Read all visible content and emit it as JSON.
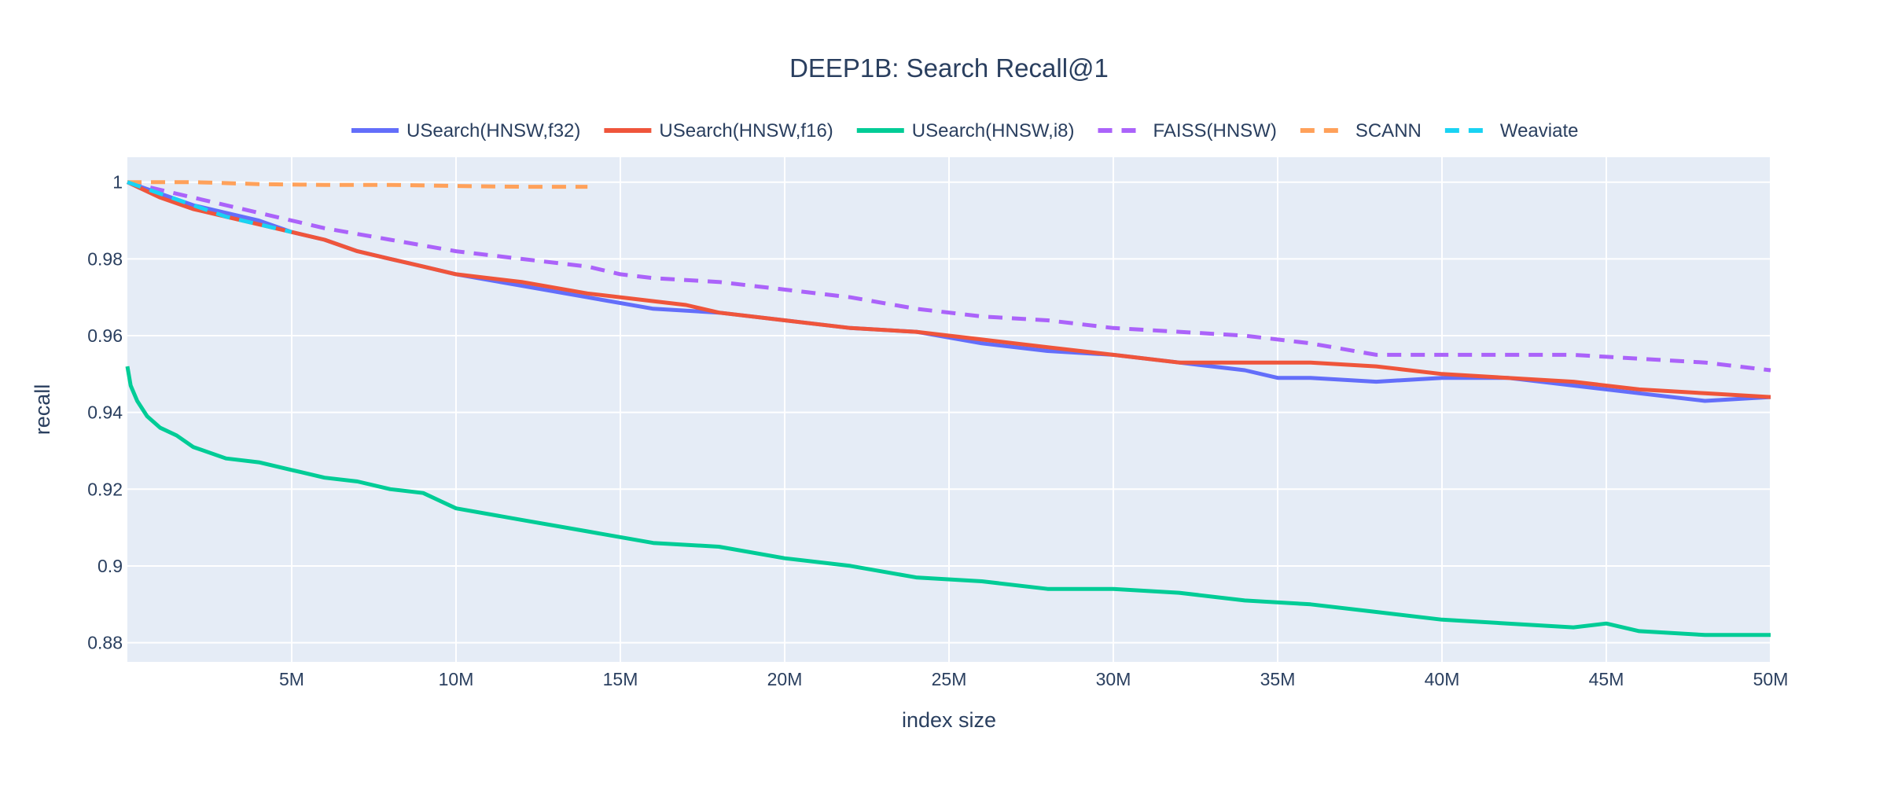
{
  "chart_data": {
    "type": "line",
    "title": "DEEP1B: Search Recall@1",
    "xlabel": "index size",
    "ylabel": "recall",
    "xlim": [
      0,
      50000000
    ],
    "ylim": [
      0.875,
      1.0065
    ],
    "x_ticks": [
      {
        "value": 5000000,
        "label": "5M"
      },
      {
        "value": 10000000,
        "label": "10M"
      },
      {
        "value": 15000000,
        "label": "15M"
      },
      {
        "value": 20000000,
        "label": "20M"
      },
      {
        "value": 25000000,
        "label": "25M"
      },
      {
        "value": 30000000,
        "label": "30M"
      },
      {
        "value": 35000000,
        "label": "35M"
      },
      {
        "value": 40000000,
        "label": "40M"
      },
      {
        "value": 45000000,
        "label": "45M"
      },
      {
        "value": 50000000,
        "label": "50M"
      }
    ],
    "y_ticks": [
      {
        "value": 0.88,
        "label": "0.88"
      },
      {
        "value": 0.9,
        "label": "0.9"
      },
      {
        "value": 0.92,
        "label": "0.92"
      },
      {
        "value": 0.94,
        "label": "0.94"
      },
      {
        "value": 0.96,
        "label": "0.96"
      },
      {
        "value": 0.98,
        "label": "0.98"
      },
      {
        "value": 1.0,
        "label": "1"
      }
    ],
    "grid": true,
    "legend_position": "top-center-horizontal",
    "colors": {
      "plot_bg": "#e5ecf6",
      "grid": "#ffffff",
      "text": "#2a3f5f"
    },
    "series": [
      {
        "name": "USearch(HNSW,f32)",
        "color": "#636efa",
        "dash": "solid",
        "x": [
          0,
          1000000,
          2000000,
          3000000,
          4000000,
          5000000,
          6000000,
          7000000,
          8000000,
          9000000,
          10000000,
          12000000,
          14000000,
          16000000,
          18000000,
          20000000,
          22000000,
          24000000,
          26000000,
          28000000,
          30000000,
          32000000,
          34000000,
          35000000,
          36000000,
          38000000,
          40000000,
          42000000,
          44000000,
          46000000,
          48000000,
          50000000
        ],
        "y": [
          1.0,
          0.997,
          0.994,
          0.992,
          0.99,
          0.987,
          0.985,
          0.982,
          0.98,
          0.978,
          0.976,
          0.973,
          0.97,
          0.967,
          0.966,
          0.964,
          0.962,
          0.961,
          0.958,
          0.956,
          0.955,
          0.953,
          0.951,
          0.949,
          0.949,
          0.948,
          0.949,
          0.949,
          0.947,
          0.945,
          0.943,
          0.944
        ]
      },
      {
        "name": "USearch(HNSW,f16)",
        "color": "#ef553b",
        "dash": "solid",
        "x": [
          0,
          1000000,
          2000000,
          3000000,
          4000000,
          5000000,
          6000000,
          7000000,
          8000000,
          9000000,
          10000000,
          12000000,
          14000000,
          16000000,
          17000000,
          18000000,
          20000000,
          22000000,
          24000000,
          26000000,
          28000000,
          30000000,
          32000000,
          34000000,
          36000000,
          38000000,
          40000000,
          42000000,
          44000000,
          46000000,
          48000000,
          50000000
        ],
        "y": [
          1.0,
          0.996,
          0.993,
          0.991,
          0.989,
          0.987,
          0.985,
          0.982,
          0.98,
          0.978,
          0.976,
          0.974,
          0.971,
          0.969,
          0.968,
          0.966,
          0.964,
          0.962,
          0.961,
          0.959,
          0.957,
          0.955,
          0.953,
          0.953,
          0.953,
          0.952,
          0.95,
          0.949,
          0.948,
          0.946,
          0.945,
          0.944
        ]
      },
      {
        "name": "USearch(HNSW,i8)",
        "color": "#00cc96",
        "dash": "solid",
        "x": [
          0,
          100000,
          300000,
          600000,
          1000000,
          1500000,
          2000000,
          3000000,
          4000000,
          5000000,
          6000000,
          7000000,
          8000000,
          9000000,
          10000000,
          12000000,
          14000000,
          16000000,
          18000000,
          20000000,
          22000000,
          24000000,
          26000000,
          28000000,
          30000000,
          32000000,
          34000000,
          36000000,
          38000000,
          40000000,
          42000000,
          44000000,
          45000000,
          46000000,
          48000000,
          50000000
        ],
        "y": [
          0.952,
          0.947,
          0.943,
          0.939,
          0.936,
          0.934,
          0.931,
          0.928,
          0.927,
          0.925,
          0.923,
          0.922,
          0.92,
          0.919,
          0.915,
          0.912,
          0.909,
          0.906,
          0.905,
          0.902,
          0.9,
          0.897,
          0.896,
          0.894,
          0.894,
          0.893,
          0.891,
          0.89,
          0.888,
          0.886,
          0.885,
          0.884,
          0.885,
          0.883,
          0.882,
          0.882
        ]
      },
      {
        "name": "FAISS(HNSW)",
        "color": "#ab63fa",
        "dash": "dash",
        "x": [
          0,
          2000000,
          4000000,
          6000000,
          8000000,
          10000000,
          12000000,
          14000000,
          15000000,
          16000000,
          18000000,
          20000000,
          22000000,
          24000000,
          26000000,
          28000000,
          30000000,
          32000000,
          34000000,
          36000000,
          38000000,
          40000000,
          42000000,
          44000000,
          46000000,
          48000000,
          49000000,
          50000000
        ],
        "y": [
          1.0,
          0.996,
          0.992,
          0.988,
          0.985,
          0.982,
          0.98,
          0.978,
          0.976,
          0.975,
          0.974,
          0.972,
          0.97,
          0.967,
          0.965,
          0.964,
          0.962,
          0.961,
          0.96,
          0.958,
          0.955,
          0.955,
          0.955,
          0.955,
          0.954,
          0.953,
          0.952,
          0.951
        ]
      },
      {
        "name": "SCANN",
        "color": "#ffa15a",
        "dash": "dash",
        "x": [
          0,
          2000000,
          4000000,
          6000000,
          8000000,
          10000000,
          12000000,
          14000000
        ],
        "y": [
          1.0,
          1.0,
          0.9995,
          0.9993,
          0.9993,
          0.999,
          0.9988,
          0.9988
        ]
      },
      {
        "name": "Weaviate",
        "color": "#19d3f3",
        "dash": "dash",
        "x": [
          0,
          1000000,
          2000000,
          3000000,
          4000000,
          5000000
        ],
        "y": [
          1.0,
          0.997,
          0.994,
          0.991,
          0.989,
          0.987
        ]
      }
    ]
  }
}
